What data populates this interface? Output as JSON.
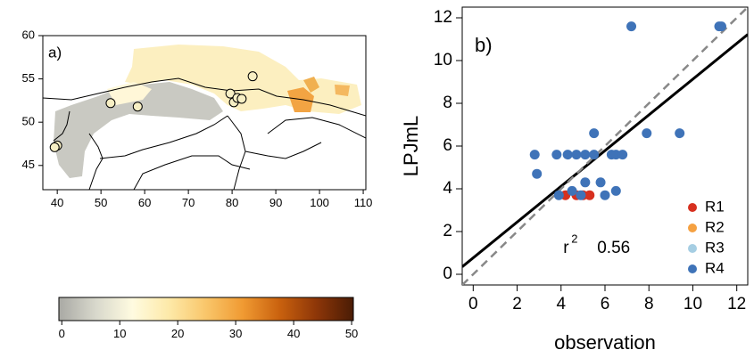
{
  "chart_data": [
    {
      "type": "scatter",
      "label": "a)",
      "xlim": [
        36.7,
        110.6
      ],
      "ylim": [
        42.2,
        60
      ],
      "xticks": [
        40,
        50,
        60,
        70,
        80,
        90,
        100,
        110
      ],
      "yticks": [
        45,
        50,
        55,
        60
      ],
      "series": [
        {
          "color": "#f7efc4",
          "x": [
            40,
            39.4,
            52.2,
            58.4,
            79.6,
            80.4,
            81.2,
            82.2,
            84.7
          ],
          "y": [
            47.3,
            47.1,
            52.2,
            51.8,
            53.3,
            52.3,
            52.8,
            52.7,
            55.3
          ]
        }
      ]
    },
    {
      "type": "colorbar",
      "xlim": [
        -0.5,
        50.3
      ],
      "xticks": [
        0,
        10,
        20,
        30,
        40,
        50
      ],
      "colors": [
        "#a9a9a4",
        "#d8d8cc",
        "#fffbe0",
        "#fde9a8",
        "#f9c66a",
        "#f09a32",
        "#c9610e",
        "#8d3608",
        "#4a1c05"
      ]
    },
    {
      "type": "scatter",
      "label": "b)",
      "xlabel": "observation",
      "ylabel": "LPJmL",
      "xlim": [
        -0.5,
        12.5
      ],
      "ylim": [
        -0.5,
        12.5
      ],
      "xticks": [
        0,
        2,
        4,
        6,
        8,
        10,
        12
      ],
      "yticks": [
        0,
        2,
        4,
        6,
        8,
        10,
        12
      ],
      "legend_position": "lower right",
      "lines": [
        {
          "intercept": 0.77,
          "slope": 0.836,
          "color": "#000000",
          "style": "solid"
        },
        {
          "intercept": 0,
          "slope": 1,
          "color": "#888888",
          "style": "dashed"
        }
      ],
      "annotation": {
        "symbol": "r",
        "exponent": "2",
        "value": "0.56"
      },
      "series": [
        {
          "name": "R1",
          "color": "#d7301f",
          "x": [
            4.2,
            4.7,
            5.0,
            5.3
          ],
          "y": [
            3.7,
            3.7,
            3.7,
            3.7
          ]
        },
        {
          "name": "R2",
          "color": "#f5a142",
          "x": [],
          "y": []
        },
        {
          "name": "R3",
          "color": "#a6cee3",
          "x": [],
          "y": []
        },
        {
          "name": "R4",
          "color": "#3f73b8",
          "x": [
            7.2,
            11.2,
            11.3,
            5.5,
            7.9,
            9.4,
            2.8,
            3.8,
            4.3,
            4.7,
            5.1,
            5.5,
            6.3,
            6.5,
            6.8,
            2.9,
            3.9,
            4.5,
            5.1,
            5.8,
            6.5,
            6.0,
            4.9
          ],
          "y": [
            11.6,
            11.6,
            11.6,
            6.6,
            6.6,
            6.6,
            5.6,
            5.6,
            5.6,
            5.6,
            5.6,
            5.6,
            5.6,
            5.6,
            5.6,
            4.7,
            3.7,
            3.9,
            4.3,
            4.3,
            3.9,
            3.7,
            3.7
          ]
        }
      ]
    }
  ]
}
